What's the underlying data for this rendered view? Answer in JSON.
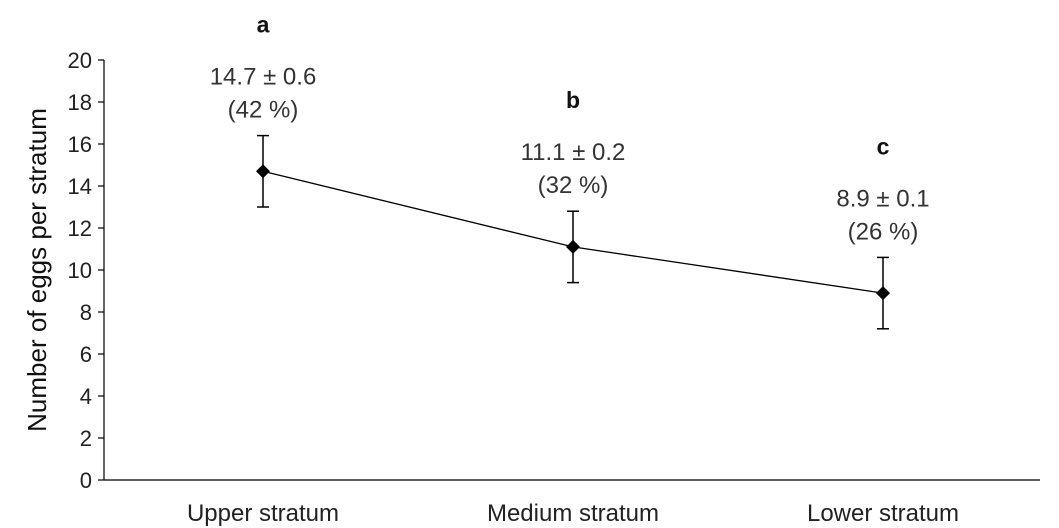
{
  "chart_data": {
    "type": "line",
    "ylabel": "Number of eggs per stratum",
    "xlabel": "",
    "ylim": [
      0,
      20
    ],
    "yticks": [
      0,
      2,
      4,
      6,
      8,
      10,
      12,
      14,
      16,
      18,
      20
    ],
    "grid": false,
    "categories": [
      "Upper stratum",
      "Medium stratum",
      "Lower stratum"
    ],
    "series": [
      {
        "values": [
          14.7,
          11.1,
          8.9
        ],
        "error_low": [
          13.0,
          9.4,
          7.2
        ],
        "error_high": [
          16.4,
          12.8,
          10.6
        ],
        "value_labels": [
          "14.7 ± 0.6",
          "11.1 ± 0.2",
          "8.9 ± 0.1"
        ],
        "percent_labels": [
          "(42 %)",
          "(32 %)",
          "(26 %)"
        ],
        "significance_letters": [
          "a",
          "b",
          "c"
        ]
      }
    ],
    "colors": {
      "line": "#000000",
      "marker": "#000000",
      "axis": "#000000"
    }
  }
}
